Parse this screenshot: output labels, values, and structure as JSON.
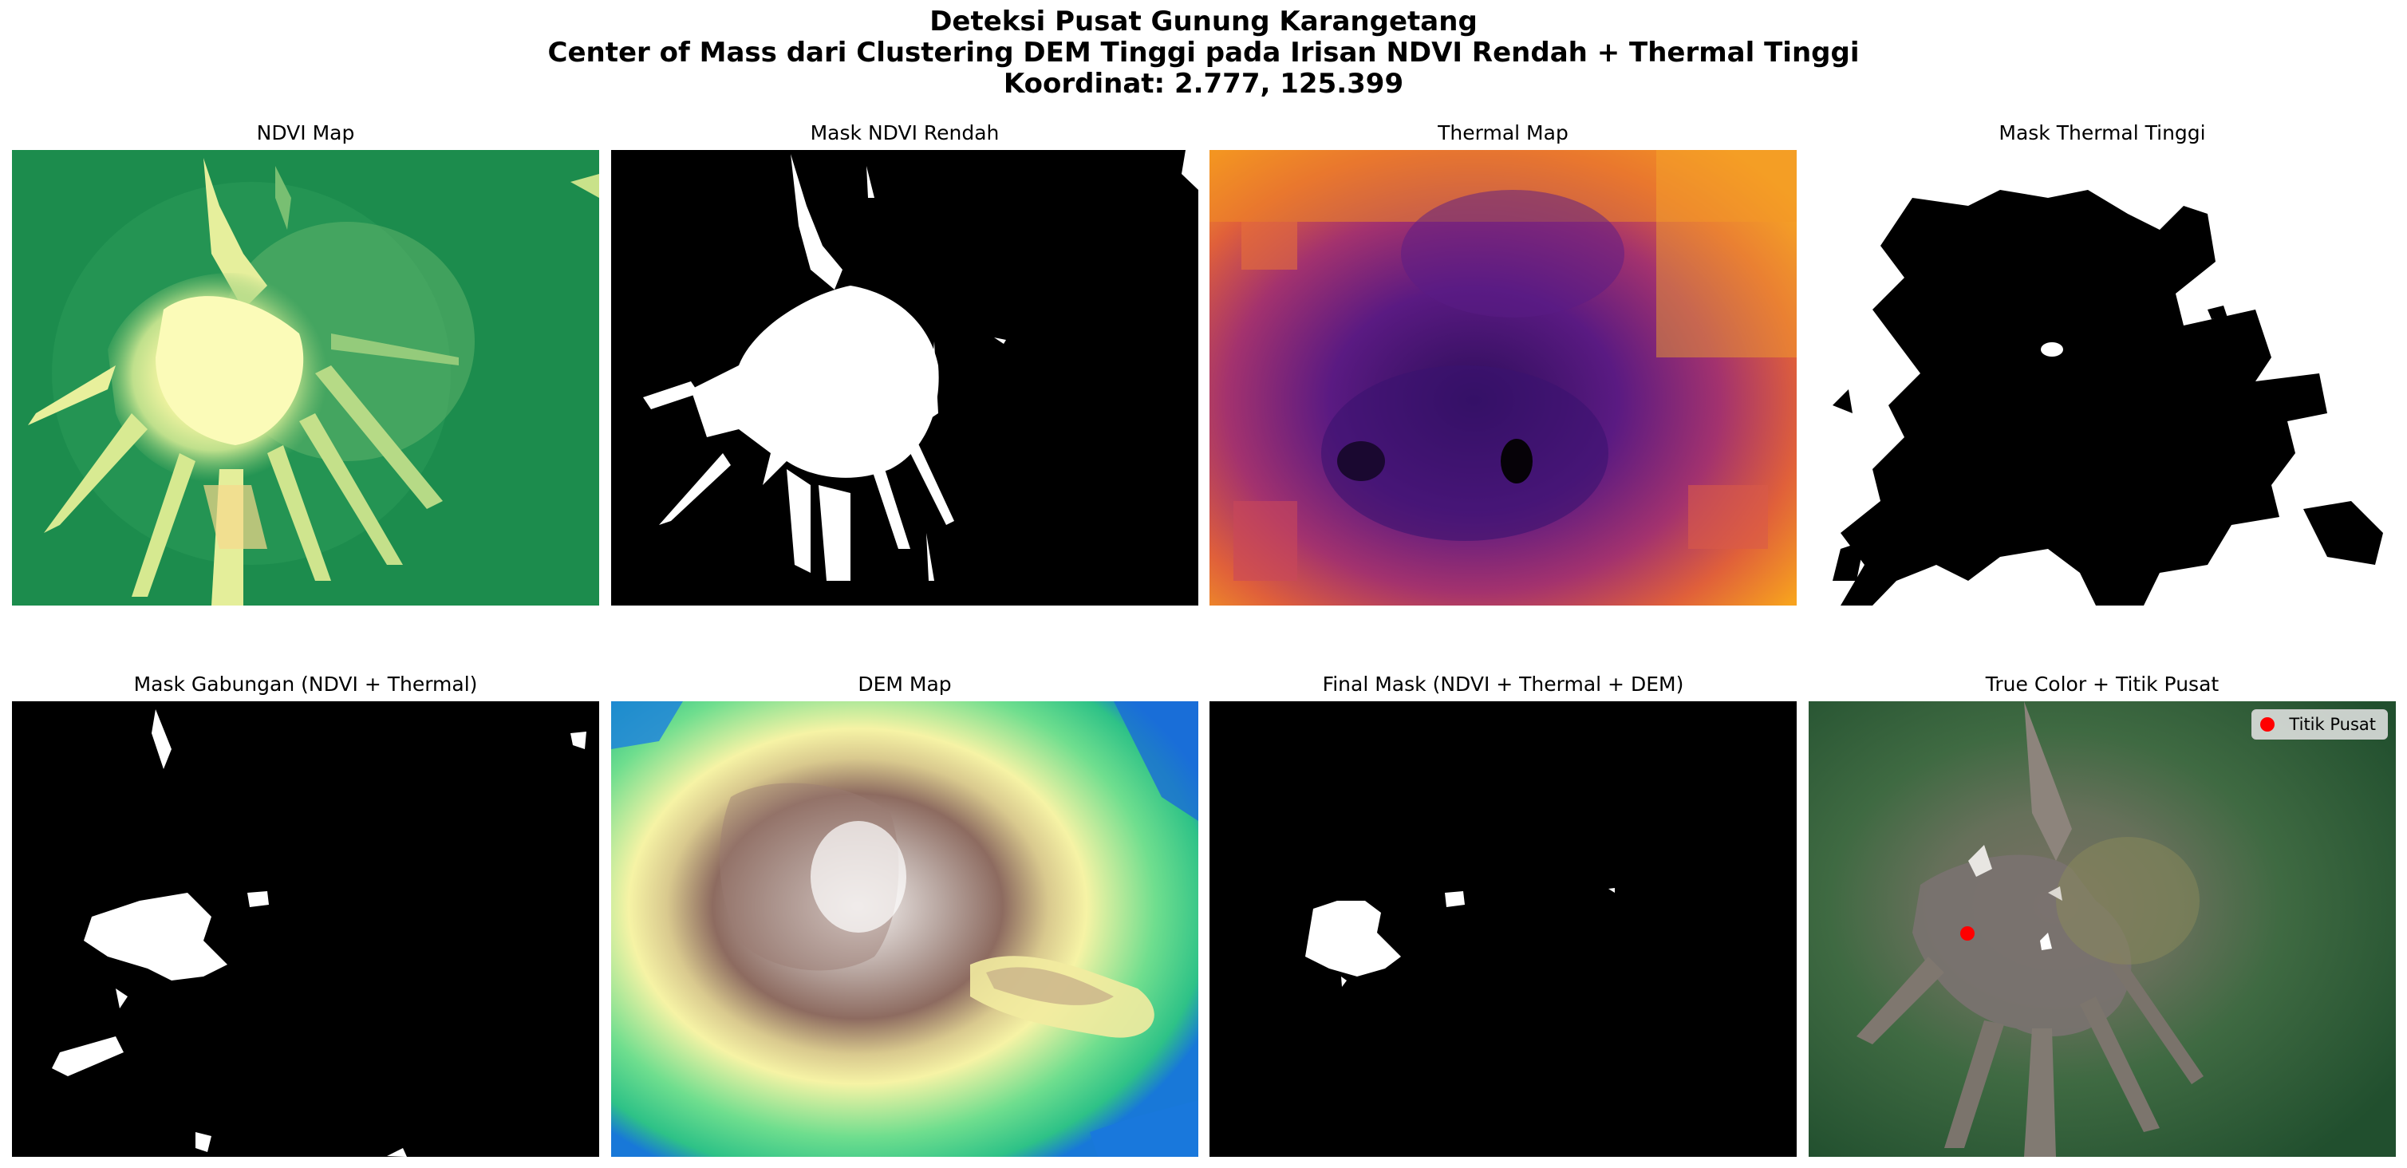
{
  "figure": {
    "title_lines": [
      "Deteksi Pusat Gunung Karangetang",
      "Center of Mass dari Clustering DEM Tinggi pada Irisan NDVI Rendah + Thermal Tinggi",
      "Koordinat: 2.777, 125.399"
    ]
  },
  "panels": {
    "ndvi": {
      "title": "NDVI Map"
    },
    "ndvi_mask": {
      "title": "Mask NDVI Rendah"
    },
    "thermal": {
      "title": "Thermal Map"
    },
    "thermal_mask": {
      "title": "Mask Thermal Tinggi"
    },
    "combined_mask": {
      "title": "Mask Gabungan (NDVI + Thermal)"
    },
    "dem": {
      "title": "DEM Map"
    },
    "final_mask": {
      "title": "Final Mask (NDVI + Thermal + DEM)"
    },
    "truecolor": {
      "title": "True Color + Titik Pusat",
      "legend_label": "Titik Pusat",
      "marker_color": "#ff0000"
    }
  },
  "colors": {
    "ndvi_green": "#1f8e4f",
    "ndvi_light": "#f3f5a6",
    "thermal_purple": "#3b1166",
    "thermal_orange": "#f07d22",
    "dem_white": "#f4f0ee",
    "dem_brown": "#8e6e64",
    "dem_yellow": "#f4f2a2",
    "dem_green": "#3ed088",
    "dem_blue": "#1479e0"
  }
}
